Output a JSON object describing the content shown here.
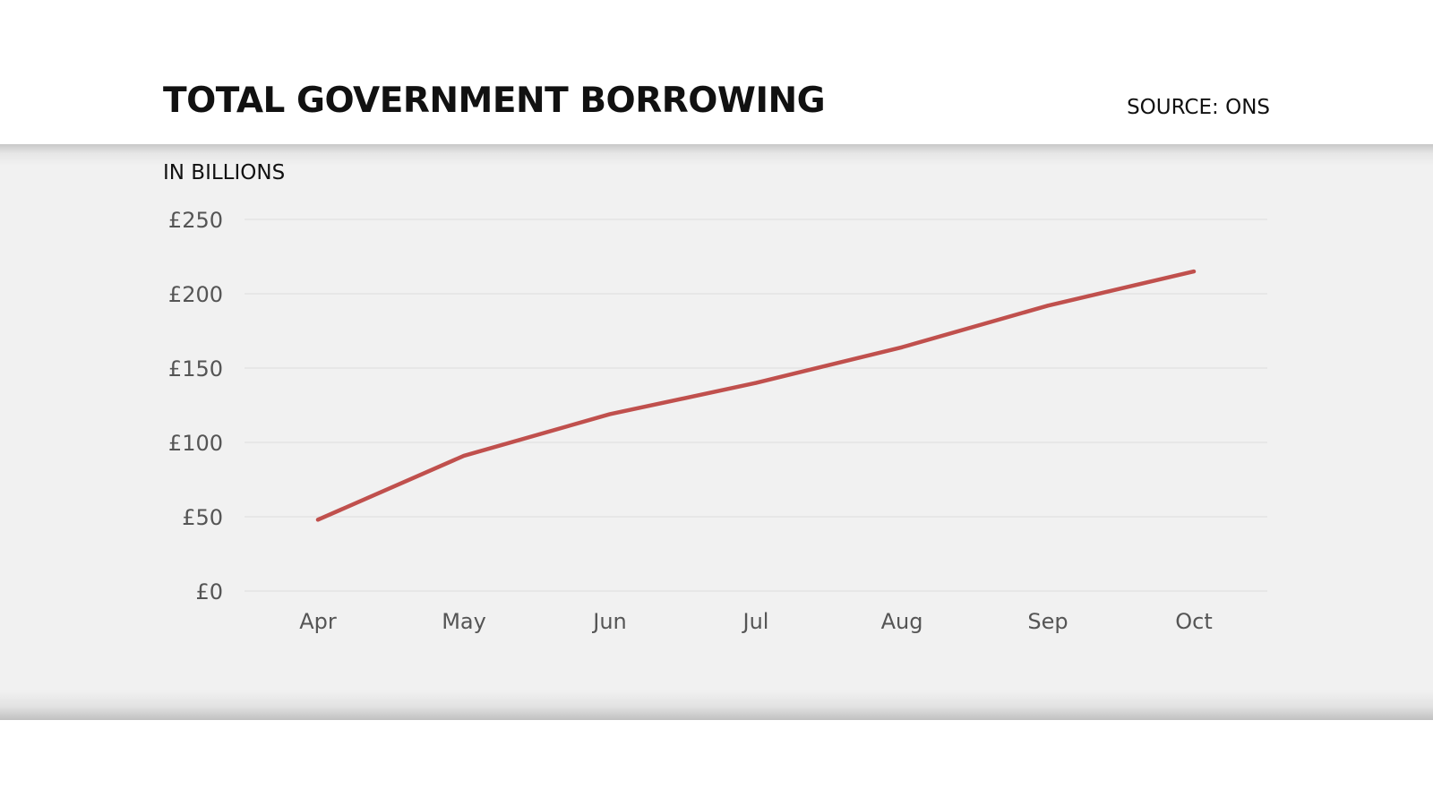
{
  "header": {
    "title": "TOTAL GOVERNMENT BORROWING",
    "source": "SOURCE: ONS"
  },
  "chart_data": {
    "type": "line",
    "title": "TOTAL GOVERNMENT BORROWING",
    "unit_label": "IN BILLIONS",
    "categories": [
      "Apr",
      "May",
      "Jun",
      "Jul",
      "Aug",
      "Sep",
      "Oct"
    ],
    "series": [
      {
        "values": [
          48,
          91,
          119,
          140,
          164,
          192,
          215
        ]
      }
    ],
    "y_ticks": [
      0,
      50,
      100,
      150,
      200,
      250
    ],
    "y_tick_labels": [
      "£0",
      "£50",
      "£100",
      "£150",
      "£200",
      "£250"
    ],
    "ylim": [
      0,
      250
    ],
    "grid": true,
    "legend": false,
    "colors": {
      "line": "#c0504d",
      "grid": "#dddddd",
      "background": "#f1f1f1"
    }
  }
}
